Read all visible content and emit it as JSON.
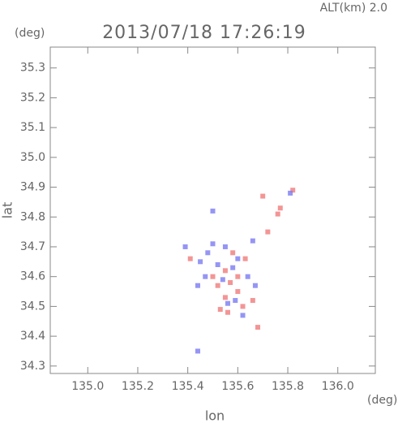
{
  "chart_data": {
    "type": "scatter",
    "title": "2013/07/18 17:26:19",
    "annotation": "ALT(km) 2.0",
    "x_label": "lon",
    "y_label": "lat",
    "x_unit": "(deg)",
    "y_unit": "(deg)",
    "xlim": [
      134.85,
      136.15
    ],
    "ylim": [
      34.275,
      35.37
    ],
    "xticks": [
      {
        "value": 135.0,
        "label": "135.0"
      },
      135.2,
      135.4,
      135.6,
      135.8,
      {
        "value": 136.0,
        "label": "136.0"
      }
    ],
    "yticks": [
      34.3,
      34.4,
      34.5,
      34.6,
      34.7,
      34.8,
      34.9,
      {
        "value": 35.0,
        "label": "35.0"
      },
      35.1,
      35.2,
      35.3
    ],
    "series": [
      {
        "color": "#f07a7a",
        "x": [
          135.55,
          135.57,
          135.6,
          135.53,
          135.56,
          135.66,
          135.68,
          135.72,
          135.76,
          135.77,
          135.7,
          135.82,
          135.41,
          135.52,
          135.6,
          135.63,
          135.58,
          135.5,
          135.55,
          135.62
        ],
        "values": [
          34.62,
          34.58,
          34.55,
          34.49,
          34.48,
          34.52,
          34.43,
          34.75,
          34.81,
          34.83,
          34.87,
          34.89,
          34.66,
          34.57,
          34.6,
          34.66,
          34.68,
          34.6,
          34.53,
          34.5
        ]
      },
      {
        "color": "#7a7af2",
        "x": [
          135.5,
          135.48,
          135.45,
          135.52,
          135.55,
          135.58,
          135.64,
          135.67,
          135.59,
          135.62,
          135.44,
          135.39,
          135.54,
          135.47,
          135.44,
          135.6,
          135.66,
          135.5,
          135.56,
          135.81
        ],
        "values": [
          34.71,
          34.68,
          34.65,
          34.64,
          34.7,
          34.63,
          34.6,
          34.57,
          34.52,
          34.47,
          34.35,
          34.7,
          34.59,
          34.6,
          34.57,
          34.66,
          34.72,
          34.82,
          34.51,
          34.88
        ]
      }
    ]
  }
}
